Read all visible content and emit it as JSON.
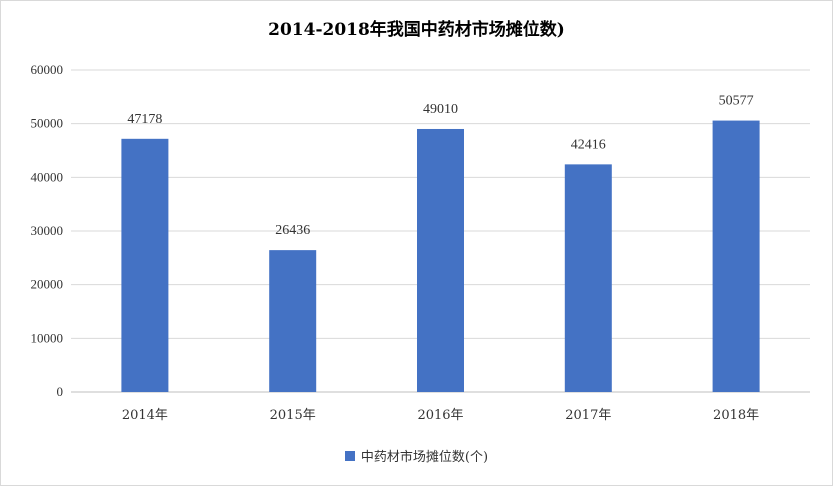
{
  "chart_data": {
    "type": "bar",
    "title": "2014-2018年我国中药材市场摊位数)",
    "categories": [
      "2014年",
      "2015年",
      "2016年",
      "2017年",
      "2018年"
    ],
    "series": [
      {
        "name": "中药材市场摊位数(个)",
        "values": [
          47178,
          26436,
          49010,
          42416,
          50577
        ],
        "color": "#4472C4"
      }
    ],
    "data_labels": [
      "47178",
      "26436",
      "49010",
      "42416",
      "50577"
    ],
    "yticks": [
      "0",
      "10000",
      "20000",
      "30000",
      "40000",
      "50000",
      "60000"
    ],
    "ylim": [
      0,
      60000
    ],
    "grid": true,
    "legend_position": "bottom"
  }
}
